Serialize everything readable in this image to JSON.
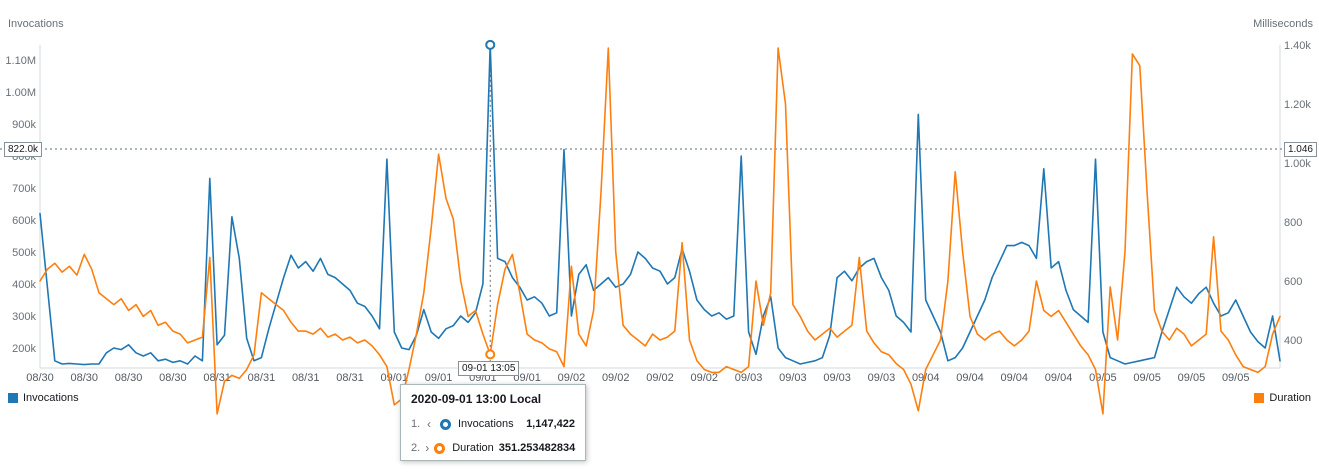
{
  "chart_data": {
    "type": "line",
    "left_axis": {
      "title": "Invocations",
      "ticks": [
        {
          "label": "1.10M",
          "value": 1100
        },
        {
          "label": "1.00M",
          "value": 1000
        },
        {
          "label": "900k",
          "value": 900
        },
        {
          "label": "800k",
          "value": 800
        },
        {
          "label": "700k",
          "value": 700
        },
        {
          "label": "600k",
          "value": 600
        },
        {
          "label": "500k",
          "value": 500
        },
        {
          "label": "400k",
          "value": 400
        },
        {
          "label": "300k",
          "value": 300
        },
        {
          "label": "200k",
          "value": 200
        }
      ],
      "range_thousands": [
        200,
        1100
      ]
    },
    "right_axis": {
      "title": "Milliseconds",
      "ticks": [
        {
          "label": "1.40k",
          "value": 1400
        },
        {
          "label": "1.20k",
          "value": 1200
        },
        {
          "label": "1.00k",
          "value": 1000
        },
        {
          "label": "800",
          "value": 800
        },
        {
          "label": "600",
          "value": 600
        },
        {
          "label": "400",
          "value": 400
        }
      ],
      "range": [
        400,
        1400
      ]
    },
    "x_ticks": [
      "08/30",
      "08/30",
      "08/30",
      "08/30",
      "08/31",
      "08/31",
      "08/31",
      "08/31",
      "09/01",
      "09/01",
      "09/01",
      "09/01",
      "09/02",
      "09/02",
      "09/02",
      "09/02",
      "09/03",
      "09/03",
      "09/03",
      "09/03",
      "09/04",
      "09/04",
      "09/04",
      "09/04",
      "09/05",
      "09/05",
      "09/05",
      "09/05"
    ],
    "x_tick_step": 6,
    "series": [
      {
        "name": "Invocations",
        "color": "#1f77b4",
        "axis": "left",
        "unit": "thousands",
        "values": [
          620,
          390,
          160,
          150,
          152,
          150,
          148,
          150,
          150,
          185,
          200,
          195,
          210,
          185,
          175,
          185,
          160,
          165,
          155,
          160,
          150,
          175,
          160,
          730,
          210,
          240,
          610,
          480,
          230,
          160,
          170,
          260,
          340,
          420,
          490,
          450,
          470,
          440,
          480,
          430,
          420,
          400,
          380,
          340,
          330,
          300,
          260,
          790,
          250,
          200,
          195,
          240,
          320,
          250,
          230,
          260,
          270,
          300,
          280,
          310,
          400,
          1147.422,
          480,
          470,
          420,
          390,
          350,
          360,
          340,
          300,
          310,
          820,
          300,
          430,
          460,
          380,
          400,
          420,
          390,
          400,
          430,
          500,
          480,
          450,
          440,
          400,
          420,
          510,
          440,
          350,
          320,
          300,
          310,
          290,
          300,
          800,
          250,
          180,
          300,
          360,
          200,
          170,
          160,
          150,
          155,
          160,
          170,
          240,
          420,
          440,
          410,
          450,
          470,
          480,
          420,
          380,
          300,
          280,
          250,
          930,
          350,
          300,
          250,
          160,
          170,
          200,
          250,
          300,
          350,
          420,
          470,
          520,
          520,
          530,
          520,
          480,
          760,
          450,
          470,
          380,
          320,
          300,
          280,
          790,
          250,
          170,
          160,
          150,
          155,
          160,
          165,
          170,
          250,
          320,
          390,
          360,
          340,
          370,
          390,
          340,
          300,
          310,
          350,
          300,
          250,
          220,
          200,
          300,
          160
        ]
      },
      {
        "name": "Duration",
        "color": "#ff7f0e",
        "axis": "right",
        "unit": "milliseconds",
        "values": [
          600,
          640,
          660,
          630,
          650,
          620,
          690,
          640,
          560,
          540,
          520,
          540,
          500,
          520,
          480,
          500,
          450,
          460,
          430,
          420,
          390,
          400,
          410,
          680,
          150,
          260,
          280,
          270,
          300,
          350,
          560,
          540,
          520,
          500,
          460,
          430,
          430,
          420,
          440,
          410,
          420,
          400,
          410,
          390,
          400,
          380,
          350,
          310,
          180,
          200,
          300,
          420,
          560,
          780,
          1030,
          880,
          810,
          600,
          480,
          500,
          420,
          351.253482834,
          520,
          640,
          690,
          560,
          420,
          400,
          390,
          370,
          360,
          310,
          650,
          420,
          380,
          500,
          900,
          1390,
          700,
          450,
          420,
          400,
          380,
          420,
          400,
          410,
          430,
          730,
          400,
          330,
          300,
          290,
          290,
          310,
          300,
          290,
          310,
          600,
          450,
          560,
          1390,
          1200,
          520,
          480,
          430,
          400,
          420,
          440,
          410,
          430,
          450,
          680,
          430,
          390,
          360,
          350,
          320,
          300,
          250,
          160,
          300,
          350,
          400,
          600,
          970,
          700,
          480,
          420,
          400,
          420,
          430,
          400,
          380,
          400,
          430,
          600,
          500,
          480,
          500,
          460,
          420,
          380,
          350,
          300,
          150,
          580,
          400,
          700,
          1370,
          1330,
          900,
          500,
          430,
          400,
          440,
          420,
          380,
          400,
          420,
          750,
          430,
          400,
          350,
          310,
          300,
          290,
          310,
          420,
          480
        ]
      }
    ],
    "horizontal_annotation": {
      "left_label": "822.0k",
      "right_label": "1.046",
      "value_thousands": 822
    },
    "vertical_annotation": {
      "label": "09-01 13:05",
      "index": 61
    },
    "highlight": {
      "index": 61
    }
  },
  "legend": {
    "left": {
      "label": "Invocations",
      "color": "#1f77b4"
    },
    "right": {
      "label": "Duration",
      "color": "#ff7f0e"
    }
  },
  "tooltip": {
    "title": "2020-09-01 13:00 Local",
    "rows": [
      {
        "num": "1.",
        "arrow": "‹",
        "name": "Invocations",
        "value": "1,147,422",
        "color": "#1f77b4"
      },
      {
        "num": "2.",
        "arrow": "›",
        "name": "Duration",
        "value": "351.253482834",
        "color": "#ff7f0e"
      }
    ]
  }
}
